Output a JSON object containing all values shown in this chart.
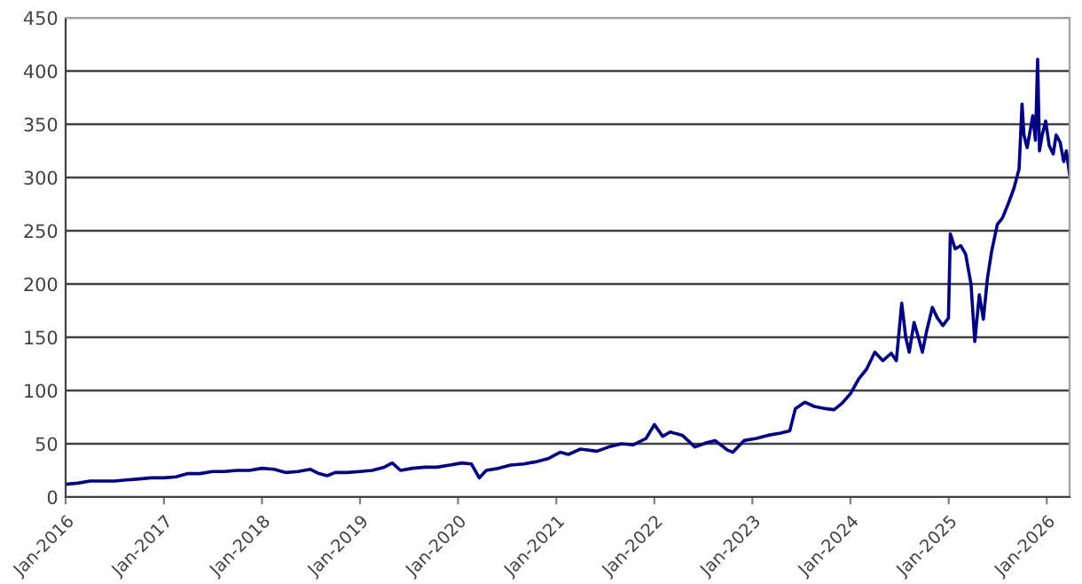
{
  "chart_data": {
    "type": "line",
    "x": [
      "2016-01-01",
      "2016-02-15",
      "2016-04-01",
      "2016-05-15",
      "2016-07-01",
      "2016-08-15",
      "2016-10-01",
      "2016-11-15",
      "2017-01-01",
      "2017-02-15",
      "2017-04-01",
      "2017-05-15",
      "2017-07-01",
      "2017-08-15",
      "2017-10-01",
      "2017-11-15",
      "2018-01-01",
      "2018-02-15",
      "2018-04-01",
      "2018-05-15",
      "2018-07-01",
      "2018-08-01",
      "2018-09-01",
      "2018-10-01",
      "2018-11-15",
      "2019-01-01",
      "2019-02-15",
      "2019-04-01",
      "2019-05-01",
      "2019-06-01",
      "2019-07-15",
      "2019-09-01",
      "2019-10-15",
      "2019-12-01",
      "2020-01-15",
      "2020-02-20",
      "2020-03-20",
      "2020-04-15",
      "2020-06-01",
      "2020-07-15",
      "2020-09-01",
      "2020-10-15",
      "2020-12-01",
      "2021-01-15",
      "2021-02-15",
      "2021-04-01",
      "2021-06-01",
      "2021-07-15",
      "2021-09-01",
      "2021-10-15",
      "2021-12-01",
      "2022-01-01",
      "2022-02-01",
      "2022-03-01",
      "2022-04-15",
      "2022-06-01",
      "2022-07-15",
      "2022-08-15",
      "2022-10-01",
      "2022-10-20",
      "2022-12-01",
      "2023-01-15",
      "2023-03-01",
      "2023-04-15",
      "2023-05-20",
      "2023-06-10",
      "2023-07-15",
      "2023-08-20",
      "2023-10-01",
      "2023-11-01",
      "2023-12-01",
      "2024-01-01",
      "2024-02-01",
      "2024-03-01",
      "2024-04-01",
      "2024-05-01",
      "2024-06-01",
      "2024-06-20",
      "2024-07-10",
      "2024-07-25",
      "2024-08-07",
      "2024-08-25",
      "2024-09-10",
      "2024-09-25",
      "2024-10-10",
      "2024-11-01",
      "2024-11-20",
      "2024-12-10",
      "2024-12-31",
      "2025-01-07",
      "2025-01-25",
      "2025-02-15",
      "2025-03-05",
      "2025-03-25",
      "2025-04-08",
      "2025-04-25",
      "2025-05-10",
      "2025-05-25",
      "2025-06-10",
      "2025-07-01",
      "2025-07-20",
      "2025-08-10",
      "2025-09-01",
      "2025-09-20",
      "2025-10-01",
      "2025-10-08",
      "2025-10-20",
      "2025-11-01",
      "2025-11-10",
      "2025-11-20",
      "2025-11-28",
      "2025-12-05",
      "2025-12-15",
      "2025-12-28",
      "2026-01-10",
      "2026-01-25",
      "2026-02-05",
      "2026-02-20",
      "2026-03-05",
      "2026-03-15",
      "2026-03-27"
    ],
    "series": [
      {
        "color": "#000080",
        "values": [
          12,
          13,
          15,
          15,
          15,
          16,
          17,
          18,
          18,
          19,
          22,
          22,
          24,
          24,
          25,
          25,
          27,
          26,
          23,
          24,
          26,
          22,
          20,
          23,
          23,
          24,
          25,
          28,
          32,
          25,
          27,
          28,
          28,
          30,
          32,
          31,
          18,
          25,
          27,
          30,
          31,
          33,
          36,
          42,
          40,
          45,
          43,
          47,
          50,
          49,
          55,
          68,
          57,
          61,
          58,
          47,
          51,
          53,
          44,
          42,
          53,
          55,
          58,
          60,
          62,
          83,
          89,
          85,
          83,
          82,
          88,
          97,
          111,
          120,
          136,
          128,
          135,
          128,
          182,
          150,
          136,
          164,
          150,
          136,
          155,
          178,
          168,
          161,
          168,
          247,
          233,
          236,
          228,
          200,
          146,
          190,
          167,
          205,
          231,
          256,
          262,
          275,
          290,
          308,
          369,
          340,
          328,
          345,
          358,
          335,
          411,
          325,
          340,
          353,
          330,
          322,
          340,
          333,
          315,
          325,
          303
        ]
      }
    ],
    "xlim": [
      "2016-01-01",
      "2026-03-27"
    ],
    "xticks": [
      {
        "value": "2016-01-01",
        "label": "Jan-2016"
      },
      {
        "value": "2017-01-01",
        "label": "Jan-2017"
      },
      {
        "value": "2018-01-01",
        "label": "Jan-2018"
      },
      {
        "value": "2019-01-01",
        "label": "Jan-2019"
      },
      {
        "value": "2020-01-01",
        "label": "Jan-2020"
      },
      {
        "value": "2021-01-01",
        "label": "Jan-2021"
      },
      {
        "value": "2022-01-01",
        "label": "Jan-2022"
      },
      {
        "value": "2023-01-01",
        "label": "Jan-2023"
      },
      {
        "value": "2024-01-01",
        "label": "Jan-2024"
      },
      {
        "value": "2025-01-01",
        "label": "Jan-2025"
      },
      {
        "value": "2026-01-01",
        "label": "Jan-2026"
      }
    ],
    "ylim": [
      0,
      450
    ],
    "yticks": [
      0,
      50,
      100,
      150,
      200,
      250,
      300,
      350,
      400,
      450
    ],
    "grid": "y",
    "legend": false,
    "marker": "none",
    "line_style": "solid"
  }
}
